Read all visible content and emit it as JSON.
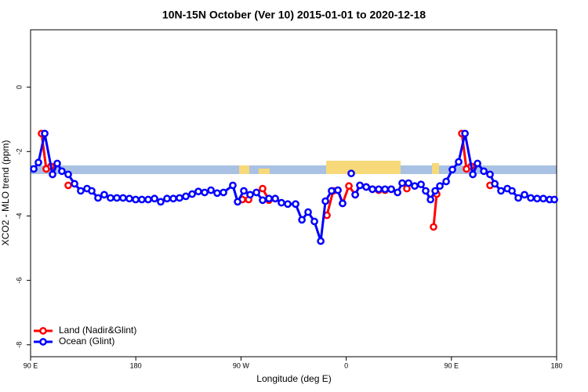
{
  "chart_data": {
    "type": "line",
    "title": "10N-15N October (Ver 10)   2015-01-01 to 2020-12-18",
    "x_label": "Longitude (deg E)",
    "y_label": "XCO2 - MLO trend (ppm)",
    "xlim": [
      90,
      540
    ],
    "ylim": [
      -8.37,
      1.78
    ],
    "xticks": [
      {
        "value": 90,
        "label": "90 E"
      },
      {
        "value": 180,
        "label": "180"
      },
      {
        "value": 270,
        "label": "90 W"
      },
      {
        "value": 360,
        "label": "0"
      },
      {
        "value": 450,
        "label": "90 E"
      },
      {
        "value": 540,
        "label": "180"
      }
    ],
    "yticks": [
      0,
      -2,
      -4,
      -6,
      -8
    ],
    "legend": "bottom-left",
    "series": [
      {
        "name": "Land (Nadir&Glint)",
        "color": "#ff0000",
        "x": [
          99.4,
          103.4,
          107.4,
          115,
          122.2,
          200,
          271.1,
          276.5,
          280,
          288.5,
          293.9,
          300,
          343.5,
          348.9,
          352.9,
          356.9,
          362.3,
          367.7,
          371.7,
          377.1,
          382.4,
          387.8,
          393.2,
          398.5,
          405,
          411.9,
          420,
          434.7,
          437.4,
          450,
          458.9,
          462.9,
          466.9,
          475,
          483.0
        ],
        "values": [
          -1.44,
          -2.54,
          -2.46,
          null,
          -3.05,
          null,
          -3.49,
          -3.49,
          null,
          -3.15,
          -3.51,
          null,
          -3.98,
          -3.22,
          -3.2,
          -3.61,
          -3.07,
          -3.34,
          -3.05,
          -3.1,
          -3.17,
          -3.2,
          -3.2,
          -3.17,
          null,
          -3.15,
          null,
          -4.34,
          -3.32,
          null,
          -1.44,
          -2.54,
          -2.46,
          null,
          -3.05
        ]
      },
      {
        "name": "Ocean (Glint)",
        "color": "#0000ff",
        "x": [
          92.7,
          96.7,
          102.1,
          108.8,
          112.8,
          116.8,
          122.2,
          127.6,
          132.9,
          138.3,
          142.3,
          147.7,
          153.0,
          158.4,
          163.8,
          169.1,
          174.5,
          179.9,
          185.2,
          190.6,
          196.0,
          201.3,
          206.7,
          212.1,
          217.4,
          222.8,
          228.2,
          233.5,
          238.9,
          244.3,
          249.6,
          255.0,
          263.0,
          267.1,
          272.4,
          277.8,
          283.2,
          288.5,
          293.9,
          299.3,
          304.6,
          310.0,
          316.7,
          322.1,
          327.4,
          332.8,
          338.2,
          342.2,
          347.5,
          352.9,
          356.9,
          360,
          364.3,
          366,
          367.7,
          371.7,
          377.1,
          382.4,
          387.8,
          393.2,
          398.5,
          403.9,
          407.9,
          413.3,
          418.6,
          424.0,
          428.0,
          432.1,
          436.1,
          440.1,
          445.5,
          450.8,
          456.2,
          461.6,
          468.3,
          472.3,
          477.7,
          483.0,
          487.1,
          492.4,
          497.8,
          501.8,
          507.2,
          512.5,
          517.9,
          523.3,
          528.6,
          534.0,
          538.0
        ],
        "values": [
          -2.54,
          -2.34,
          -1.44,
          -2.71,
          -2.37,
          -2.61,
          -2.71,
          -3.0,
          -3.22,
          -3.15,
          -3.22,
          -3.44,
          -3.34,
          -3.44,
          -3.44,
          -3.44,
          -3.46,
          -3.49,
          -3.49,
          -3.49,
          -3.46,
          -3.56,
          -3.46,
          -3.46,
          -3.44,
          -3.39,
          -3.32,
          -3.24,
          -3.27,
          -3.2,
          -3.29,
          -3.27,
          -3.05,
          -3.56,
          -3.22,
          -3.34,
          -3.27,
          -3.51,
          -3.46,
          -3.46,
          -3.59,
          -3.63,
          -3.63,
          -4.12,
          -3.88,
          -4.17,
          -4.78,
          -3.54,
          -3.22,
          -3.2,
          -3.61,
          null,
          -2.68,
          null,
          -3.34,
          -3.05,
          -3.1,
          -3.17,
          -3.17,
          -3.17,
          -3.17,
          -3.27,
          -2.98,
          -2.98,
          -3.07,
          -3.02,
          -3.22,
          -3.49,
          -3.22,
          -3.07,
          -2.93,
          -2.56,
          -2.32,
          -1.44,
          -2.71,
          -2.37,
          -2.61,
          -2.71,
          -3.0,
          -3.22,
          -3.15,
          -3.22,
          -3.44,
          -3.34,
          -3.44,
          -3.46,
          -3.46,
          -3.49,
          -3.49
        ]
      }
    ]
  }
}
